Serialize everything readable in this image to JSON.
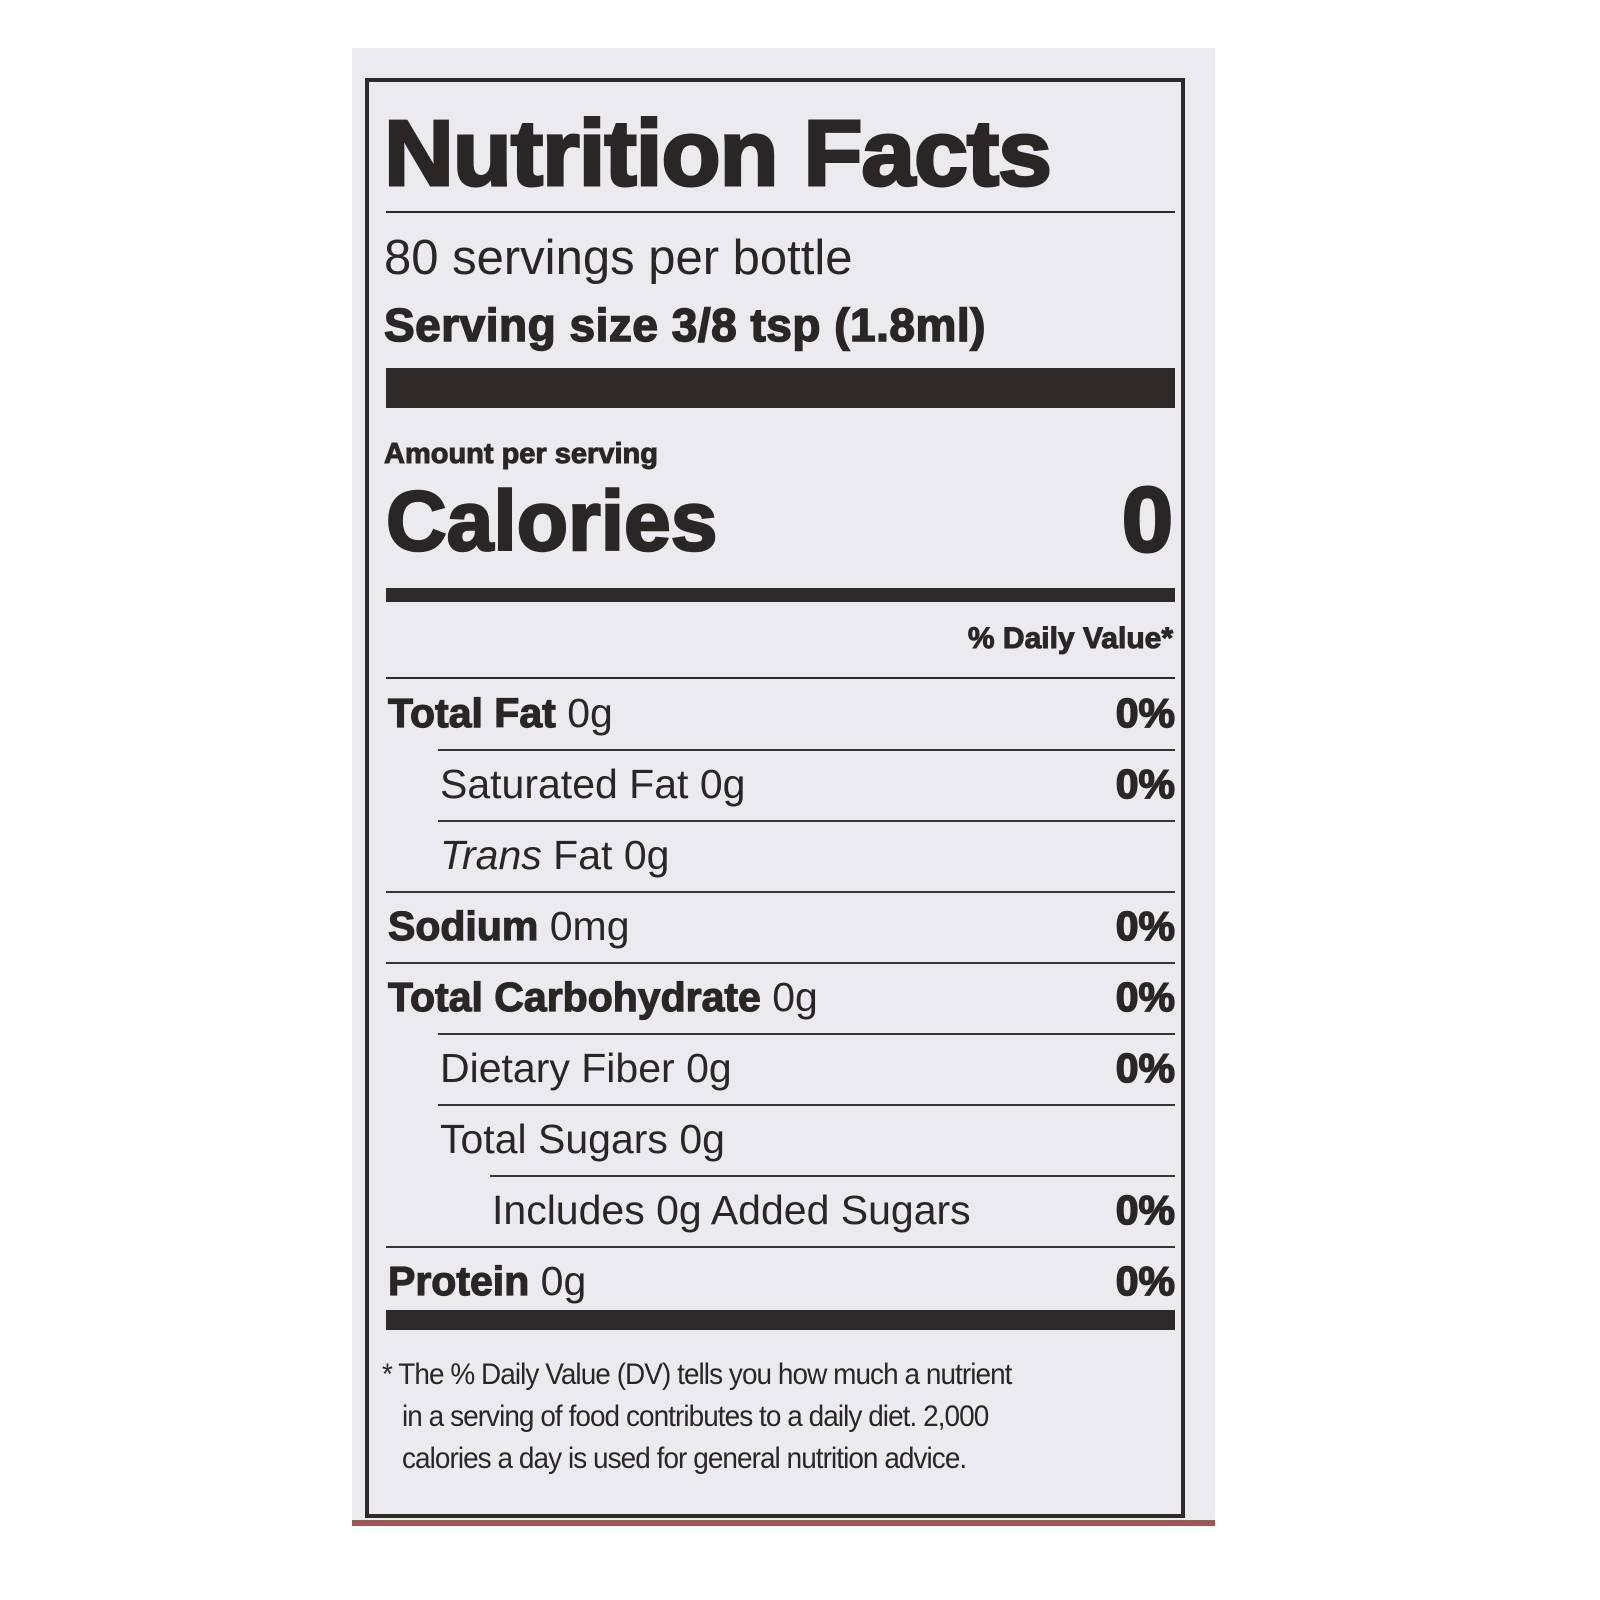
{
  "label": {
    "title": "Nutrition Facts",
    "servings_per_container": "80 servings per bottle",
    "serving_size": "Serving size 3/8 tsp (1.8ml)",
    "amount_per_serving": "Amount per serving",
    "calories_label": "Calories",
    "calories_value": "0",
    "daily_value_header": "% Daily Value*",
    "nutrients": [
      {
        "name": "Total Fat",
        "amount": "0g",
        "dv": "0%",
        "bold": true,
        "indent": 0
      },
      {
        "name": "Saturated Fat",
        "amount": "0g",
        "dv": "0%",
        "bold": false,
        "indent": 1
      },
      {
        "name": "Trans",
        "name_suffix": "Fat",
        "amount": "0g",
        "dv": "",
        "bold": false,
        "indent": 1,
        "italic_prefix": true
      },
      {
        "name": "Sodium",
        "amount": "0mg",
        "dv": "0%",
        "bold": true,
        "indent": 0
      },
      {
        "name": "Total Carbohydrate",
        "amount": "0g",
        "dv": "0%",
        "bold": true,
        "indent": 0
      },
      {
        "name": "Dietary Fiber",
        "amount": "0g",
        "dv": "0%",
        "bold": false,
        "indent": 1
      },
      {
        "name": "Total Sugars",
        "amount": "0g",
        "dv": "",
        "bold": false,
        "indent": 1
      },
      {
        "name": "Includes 0g Added Sugars",
        "amount": "",
        "dv": "0%",
        "bold": false,
        "indent": 2
      },
      {
        "name": "Protein",
        "amount": "0g",
        "dv": "0%",
        "bold": true,
        "indent": 0
      }
    ],
    "footnote": [
      "* The % Daily Value (DV) tells you how much a nutrient",
      "in a serving of food contributes to a daily diet. 2,000",
      "calories a day is used for general nutrition advice."
    ]
  }
}
